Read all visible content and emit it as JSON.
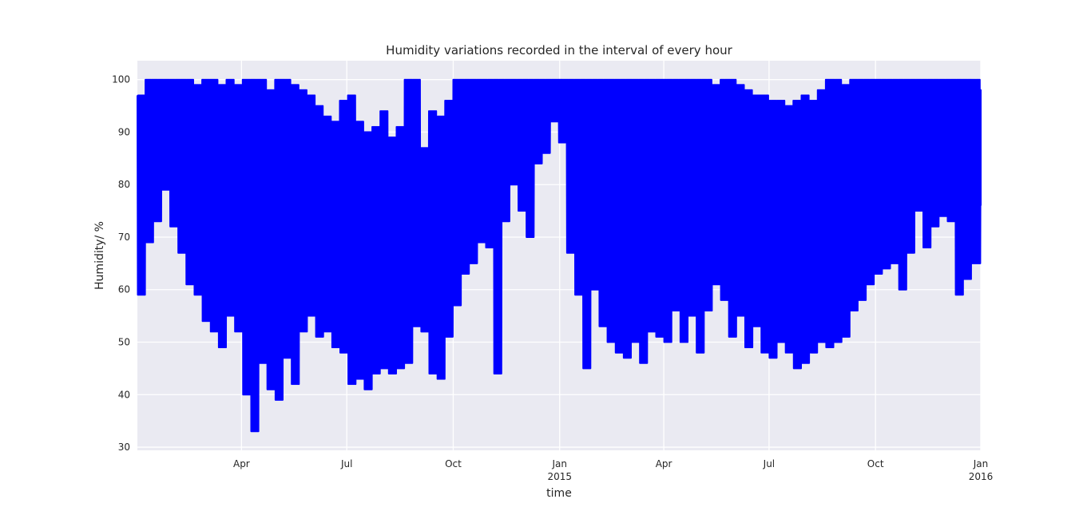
{
  "chart_data": {
    "type": "line",
    "title": "Humidity variations recorded in the interval of every hour",
    "xlabel": "time",
    "ylabel": "Humidity/ %",
    "x_range": [
      "2014-01-01",
      "2015-12-31"
    ],
    "ylim": [
      29.4,
      103.6
    ],
    "grid": true,
    "legend": "none",
    "colors": {
      "line": "#0000ff",
      "plot_bg": "#eaeaf2",
      "grid": "#ffffff",
      "text": "#262626"
    },
    "y_ticks": [
      30,
      40,
      50,
      60,
      70,
      80,
      90,
      100
    ],
    "x_ticks": [
      {
        "date": "2014-04-01",
        "label": "Apr",
        "sub": ""
      },
      {
        "date": "2014-07-01",
        "label": "Jul",
        "sub": ""
      },
      {
        "date": "2014-10-01",
        "label": "Oct",
        "sub": ""
      },
      {
        "date": "2015-01-01",
        "label": "Jan",
        "sub": "2015"
      },
      {
        "date": "2015-04-01",
        "label": "Apr",
        "sub": ""
      },
      {
        "date": "2015-07-01",
        "label": "Jul",
        "sub": ""
      },
      {
        "date": "2015-10-01",
        "label": "Oct",
        "sub": ""
      },
      {
        "date": "2016-01-01",
        "label": "Jan",
        "sub": "2016"
      }
    ],
    "series": [
      {
        "sampling": "hourly readings, shown as weekly min/max envelope",
        "x": [
          "2014-01-01",
          "2014-01-08",
          "2014-01-15",
          "2014-01-22",
          "2014-01-29",
          "2014-02-05",
          "2014-02-12",
          "2014-02-19",
          "2014-02-26",
          "2014-03-05",
          "2014-03-12",
          "2014-03-19",
          "2014-03-26",
          "2014-04-02",
          "2014-04-09",
          "2014-04-16",
          "2014-04-23",
          "2014-04-30",
          "2014-05-07",
          "2014-05-14",
          "2014-05-21",
          "2014-05-28",
          "2014-06-04",
          "2014-06-11",
          "2014-06-18",
          "2014-06-25",
          "2014-07-02",
          "2014-07-09",
          "2014-07-16",
          "2014-07-23",
          "2014-07-30",
          "2014-08-06",
          "2014-08-13",
          "2014-08-20",
          "2014-08-27",
          "2014-09-03",
          "2014-09-10",
          "2014-09-17",
          "2014-09-24",
          "2014-10-01",
          "2014-10-08",
          "2014-10-15",
          "2014-10-22",
          "2014-10-29",
          "2014-11-05",
          "2014-11-12",
          "2014-11-19",
          "2014-11-26",
          "2014-12-03",
          "2014-12-10",
          "2014-12-17",
          "2014-12-24",
          "2014-12-31",
          "2015-01-07",
          "2015-01-14",
          "2015-01-21",
          "2015-01-28",
          "2015-02-04",
          "2015-02-11",
          "2015-02-18",
          "2015-02-25",
          "2015-03-04",
          "2015-03-11",
          "2015-03-18",
          "2015-03-25",
          "2015-04-01",
          "2015-04-08",
          "2015-04-15",
          "2015-04-22",
          "2015-04-29",
          "2015-05-06",
          "2015-05-13",
          "2015-05-20",
          "2015-05-27",
          "2015-06-03",
          "2015-06-10",
          "2015-06-17",
          "2015-06-24",
          "2015-07-01",
          "2015-07-08",
          "2015-07-15",
          "2015-07-22",
          "2015-07-29",
          "2015-08-05",
          "2015-08-12",
          "2015-08-19",
          "2015-08-26",
          "2015-09-02",
          "2015-09-09",
          "2015-09-16",
          "2015-09-23",
          "2015-09-30",
          "2015-10-07",
          "2015-10-14",
          "2015-10-21",
          "2015-10-28",
          "2015-11-04",
          "2015-11-11",
          "2015-11-18",
          "2015-11-25",
          "2015-12-02",
          "2015-12-09",
          "2015-12-16",
          "2015-12-23",
          "2015-12-31"
        ],
        "min": [
          59,
          69,
          73,
          79,
          72,
          67,
          61,
          59,
          54,
          52,
          49,
          55,
          52,
          40,
          33,
          46,
          41,
          39,
          47,
          42,
          52,
          55,
          51,
          52,
          49,
          48,
          42,
          43,
          41,
          44,
          45,
          44,
          45,
          46,
          53,
          52,
          44,
          43,
          51,
          57,
          63,
          65,
          69,
          68,
          44,
          73,
          80,
          75,
          70,
          84,
          86,
          92,
          88,
          67,
          59,
          45,
          60,
          53,
          50,
          48,
          47,
          50,
          46,
          52,
          51,
          50,
          56,
          50,
          55,
          48,
          56,
          61,
          58,
          51,
          55,
          49,
          53,
          48,
          47,
          50,
          48,
          45,
          46,
          48,
          50,
          49,
          50,
          51,
          56,
          58,
          61,
          63,
          64,
          65,
          60,
          67,
          75,
          68,
          72,
          74,
          73,
          59,
          62,
          65,
          76
        ],
        "max": [
          97,
          100,
          100,
          100,
          100,
          100,
          100,
          99,
          100,
          100,
          99,
          100,
          99,
          100,
          100,
          100,
          98,
          100,
          100,
          99,
          98,
          97,
          95,
          93,
          92,
          96,
          97,
          92,
          90,
          91,
          94,
          89,
          91,
          100,
          100,
          87,
          94,
          93,
          96,
          100,
          100,
          100,
          100,
          100,
          100,
          100,
          100,
          100,
          100,
          100,
          100,
          100,
          100,
          100,
          100,
          100,
          100,
          100,
          100,
          100,
          100,
          100,
          100,
          100,
          100,
          100,
          100,
          100,
          100,
          100,
          100,
          99,
          100,
          100,
          99,
          98,
          97,
          97,
          96,
          96,
          95,
          96,
          97,
          96,
          98,
          100,
          100,
          99,
          100,
          100,
          100,
          100,
          100,
          100,
          100,
          100,
          100,
          100,
          100,
          100,
          100,
          100,
          100,
          100,
          98
        ]
      }
    ]
  }
}
